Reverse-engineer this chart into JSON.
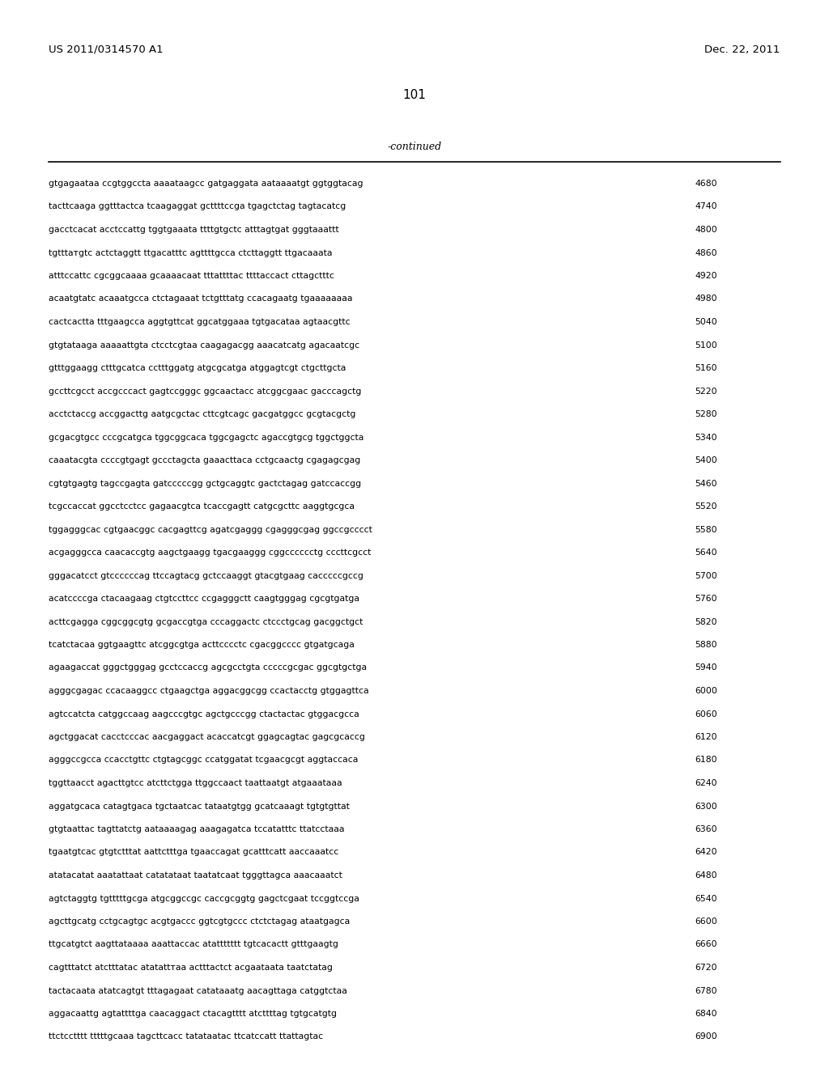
{
  "header_left": "US 2011/0314570 A1",
  "header_right": "Dec. 22, 2011",
  "page_number": "101",
  "continued_label": "-continued",
  "bg_color": "#ffffff",
  "text_color": "#000000",
  "sequences": [
    [
      "gtgagaataa ccgtggccta aaaataagcc gatgaggata aataaaatgt ggtggtacag",
      "4680"
    ],
    [
      "tacttcaaga ggtttactca tcaagaggat gcttttccga tgagctctag tagtacatcg",
      "4740"
    ],
    [
      "gacctcacat acctccattg tggtgaaata ttttgtgctc atttagtgat gggtaaattt",
      "4800"
    ],
    [
      "tgtttатgtc actctaggtt ttgacatttc agttttgcca ctcttaggtt ttgacaaata",
      "4860"
    ],
    [
      "atttccattc cgcggcaaaa gcaaaacaat tttattttac ttttaccact cttagctttc",
      "4920"
    ],
    [
      "acaatgtatc acaaatgcca ctctagaaat tctgtttatg ccacagaatg tgaaaaaaaa",
      "4980"
    ],
    [
      "cactcactta tttgaagcca aggtgttcat ggcatggaaa tgtgacataa agtaacgttc",
      "5040"
    ],
    [
      "gtgtataaga aaaaattgta ctcctcgtaa caagagacgg aaacatcatg agacaatcgc",
      "5100"
    ],
    [
      "gtttggaagg ctttgcatca cctttggatg atgcgcatga atggagtcgt ctgcttgcta",
      "5160"
    ],
    [
      "gccttcgcct accgcccact gagtccgggc ggcaactacc atcggcgaac gacccagctg",
      "5220"
    ],
    [
      "acctctaccg accggacttg aatgcgctac cttcgtcagc gacgatggcc gcgtacgctg",
      "5280"
    ],
    [
      "gcgacgtgcc cccgcatgca tggcggcaca tggcgagctc agaccgtgcg tggctggcta",
      "5340"
    ],
    [
      "caaatacgta ccccgtgagt gccctagcta gaaacttaca cctgcaactg cgagagcgag",
      "5400"
    ],
    [
      "cgtgtgagtg tagccgagta gatcccccgg gctgcaggtc gactctagag gatccaccgg",
      "5460"
    ],
    [
      "tcgccaccat ggcctcctcc gagaacgtca tcaccgagtt catgcgcttc aaggtgcgca",
      "5520"
    ],
    [
      "tggagggcac cgtgaacggc cacgagttcg agatcgaggg cgagggcgag ggccgcccct",
      "5580"
    ],
    [
      "acgagggcca caacaccgtg aagctgaagg tgacgaaggg cggcccccctg cccttcgcct",
      "5640"
    ],
    [
      "gggacatcct gtccccccag ttccagtacg gctccaaggt gtacgtgaag cacccccgccg",
      "5700"
    ],
    [
      "acatccccga ctacaagaag ctgtccttcc ccgagggctt caagtgggag cgcgtgatga",
      "5760"
    ],
    [
      "acttcgagga cggcggcgtg gcgaccgtga cccaggactc ctccctgcag gacggctgct",
      "5820"
    ],
    [
      "tcatctacaa ggtgaagttc atcggcgtga acttcccctc cgacggcccc gtgatgcaga",
      "5880"
    ],
    [
      "agaagaccat gggctgggag gcctccaccg agcgcctgta cccccgcgac ggcgtgctga",
      "5940"
    ],
    [
      "agggcgagac ccacaaggcc ctgaagctga aggacggcgg ccactacctg gtggagttca",
      "6000"
    ],
    [
      "agtccatcta catggccaag aagcccgtgc agctgcccgg ctactactac gtggacgcca",
      "6060"
    ],
    [
      "agctggacat cacctcccac aacgaggact acaccatcgt ggagcagtac gagcgcaccg",
      "6120"
    ],
    [
      "agggccgcca ccacctgttc ctgtagcggc ccatggatat tcgaacgcgt aggtaccaca",
      "6180"
    ],
    [
      "tggttaacct agacttgtcc atcttctgga ttggccaact taattaatgt atgaaataaa",
      "6240"
    ],
    [
      "aggatgcaca catagtgaca tgctaatcac tataatgtgg gcatcaaagt tgtgtgttat",
      "6300"
    ],
    [
      "gtgtaattac tagttatctg aataaaagag aaagagatca tccatatttc ttatcctaaa",
      "6360"
    ],
    [
      "tgaatgtcac gtgtctttat aattctttga tgaaccagat gcatttcatt aaccaaatcc",
      "6420"
    ],
    [
      "atatacatat aaatattaat catatataat taatatcaat tgggttagca aaacaaatct",
      "6480"
    ],
    [
      "agtctaggtg tgtttttgcga atgcggccgc caccgcggtg gagctcgaat tccggtccga",
      "6540"
    ],
    [
      "agcttgcatg cctgcagtgc acgtgaccc ggtcgtgccc ctctctagag ataatgagca",
      "6600"
    ],
    [
      "ttgcatgtct aagttataaaa aaattaccac atattttttt tgtcacactt gtttgaagtg",
      "6660"
    ],
    [
      "cagtttatct atctttatac atatattтaa actttactct acgaataata taatctatag",
      "6720"
    ],
    [
      "tactacaata atatcagtgt tttagagaat catataaatg aacagttaga catggtctaa",
      "6780"
    ],
    [
      "aggacaattg agtattttga caacaggact ctacagtttt atcttttag tgtgcatgtg",
      "6840"
    ],
    [
      "ttctcctttt tttttgcaaa tagcttcacc tatataatac ttcatccatt ttattagtac",
      "6900"
    ]
  ]
}
